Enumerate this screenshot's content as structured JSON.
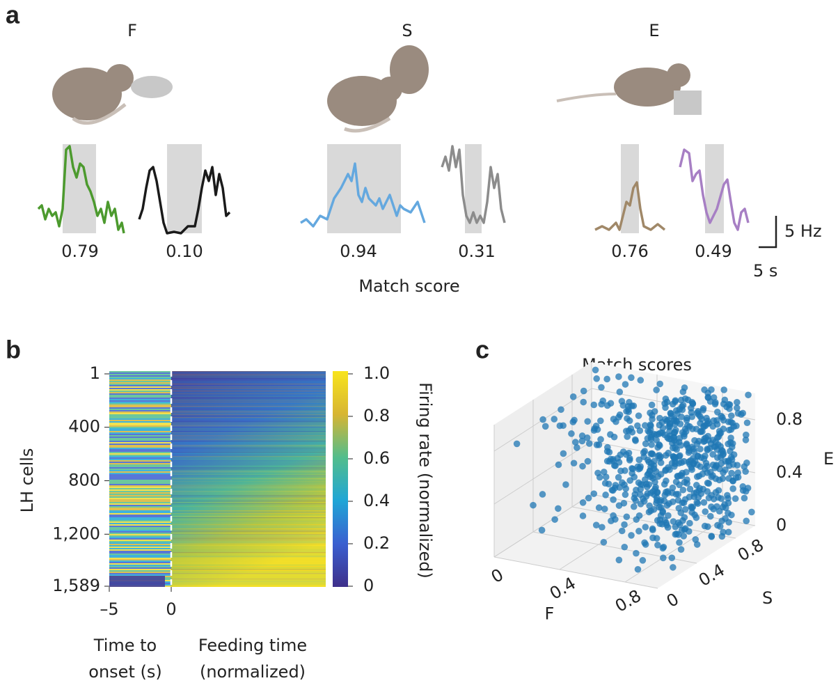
{
  "panel_a": {
    "label": "a",
    "columns": [
      {
        "title": "F",
        "scores": [
          "0.79",
          "0.10"
        ]
      },
      {
        "title": "S",
        "scores": [
          "0.94",
          "0.31"
        ]
      },
      {
        "title": "E",
        "scores": [
          "0.76",
          "0.49"
        ]
      }
    ],
    "xlabel": "Match score",
    "scale_y": "5 Hz",
    "scale_x": "5 s"
  },
  "panel_b": {
    "label": "b",
    "ylabel": "LH cells",
    "ylim": [
      1,
      1589
    ],
    "yticks": [
      1,
      400,
      800,
      {
        "value": 1200,
        "label": "1,200"
      },
      {
        "value": 1589,
        "label": "1,589"
      }
    ],
    "xlim": [
      -5,
      0
    ],
    "xticks": [
      {
        "value": -5,
        "label": "–5"
      },
      0
    ],
    "xlabel_pre": [
      "Time to",
      "onset (s)"
    ],
    "xlabel_post": [
      "Feeding time",
      "(normalized)"
    ],
    "colorbar": {
      "label": "Firing rate (normalized)",
      "lim": [
        0,
        1
      ],
      "ticks": [
        0,
        0.2,
        0.4,
        0.6,
        0.8,
        {
          "value": 1,
          "label": "1.0"
        }
      ]
    }
  },
  "panel_c": {
    "label": "c",
    "title": "Match scores",
    "xlabel": "F",
    "ylabel": "S",
    "zlabel": "E",
    "lim": [
      0,
      1
    ],
    "xticks": [
      0,
      0.4,
      0.8
    ],
    "yticks": [
      0,
      0.4,
      0.8
    ],
    "zticks": [
      0,
      0.4,
      0.8
    ]
  }
}
